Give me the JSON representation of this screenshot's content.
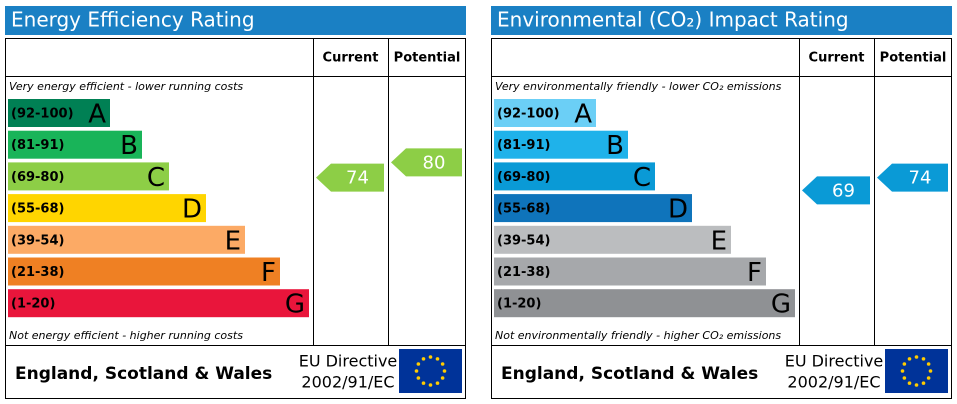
{
  "panels": [
    {
      "title": "Energy Efficiency Rating",
      "headers": [
        "Current",
        "Potential"
      ],
      "top_note": "Very energy efficient - lower running costs",
      "bottom_note": "Not energy efficient - higher running costs",
      "bands": [
        {
          "range": "(92-100)",
          "letter": "A",
          "color": "#008054"
        },
        {
          "range": "(81-91)",
          "letter": "B",
          "color": "#19b459"
        },
        {
          "range": "(69-80)",
          "letter": "C",
          "color": "#8dce46"
        },
        {
          "range": "(55-68)",
          "letter": "D",
          "color": "#ffd500"
        },
        {
          "range": "(39-54)",
          "letter": "E",
          "color": "#fcaa65"
        },
        {
          "range": "(21-38)",
          "letter": "F",
          "color": "#ef8023"
        },
        {
          "range": "(1-20)",
          "letter": "G",
          "color": "#e9153b"
        }
      ],
      "current": 74,
      "potential": 80,
      "footer": {
        "region": "England, Scotland & Wales",
        "directive_line1": "EU Directive",
        "directive_line2": "2002/91/EC"
      }
    },
    {
      "title": "Environmental (CO₂) Impact Rating",
      "headers": [
        "Current",
        "Potential"
      ],
      "top_note": "Very environmentally friendly - lower CO₂ emissions",
      "bottom_note": "Not environmentally friendly - higher CO₂ emissions",
      "bands": [
        {
          "range": "(92-100)",
          "letter": "A",
          "color": "#6bcff6"
        },
        {
          "range": "(81-91)",
          "letter": "B",
          "color": "#1fb2ea"
        },
        {
          "range": "(69-80)",
          "letter": "C",
          "color": "#0a9ad6"
        },
        {
          "range": "(55-68)",
          "letter": "D",
          "color": "#0f74bb"
        },
        {
          "range": "(39-54)",
          "letter": "E",
          "color": "#bbbdbf"
        },
        {
          "range": "(21-38)",
          "letter": "F",
          "color": "#a6a8ab"
        },
        {
          "range": "(1-20)",
          "letter": "G",
          "color": "#8f9194"
        }
      ],
      "current": 69,
      "potential": 74,
      "footer": {
        "region": "England, Scotland & Wales",
        "directive_line1": "EU Directive",
        "directive_line2": "2002/91/EC"
      }
    }
  ]
}
